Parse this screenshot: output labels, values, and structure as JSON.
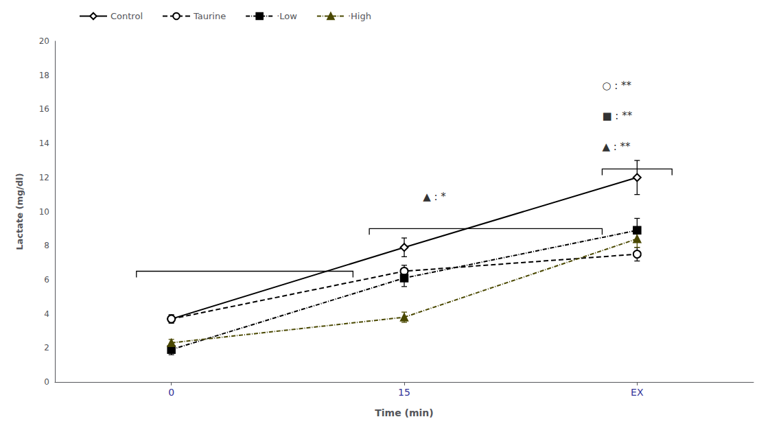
{
  "chart_data": {
    "type": "line",
    "xlabel": "Time (min)",
    "ylabel": "Lactate (mg/dl)",
    "categories": [
      "0",
      "15",
      "EX"
    ],
    "ylim": [
      0,
      20
    ],
    "yticks": [
      0,
      2,
      4,
      6,
      8,
      10,
      12,
      14,
      16,
      18,
      20
    ],
    "grid": false,
    "legend": "upper left",
    "series": [
      {
        "name": "Control",
        "color": "#000000",
        "marker": "diamond-open",
        "line_style": "solid",
        "values": [
          3.7,
          7.9,
          12.0
        ],
        "errors": [
          0.25,
          0.55,
          1.0
        ]
      },
      {
        "name": "Taurine",
        "color": "#000000",
        "marker": "circle-open",
        "line_style": "dashed",
        "values": [
          3.7,
          6.5,
          7.5
        ],
        "errors": [
          0.2,
          0.35,
          0.4
        ]
      },
      {
        "name": "·Low",
        "color": "#000000",
        "marker": "square",
        "line_style": "dashdot",
        "values": [
          1.9,
          6.1,
          8.9
        ],
        "errors": [
          0.3,
          0.5,
          0.7
        ]
      },
      {
        "name": "·High",
        "color": "#4a4800",
        "marker": "triangle",
        "line_style": "dashdot",
        "values": [
          2.3,
          3.8,
          8.4
        ],
        "errors": [
          0.2,
          0.3,
          0.5
        ]
      }
    ],
    "brackets": [
      {
        "x1": -0.15,
        "x2": 0.78,
        "y": 6.5
      },
      {
        "x1": 0.85,
        "x2": 1.85,
        "y": 9.0
      },
      {
        "x1": 1.85,
        "x2": 2.15,
        "y": 12.5
      }
    ],
    "annotations": [
      {
        "text": "▲ : *",
        "x": 1.08,
        "y": 10.85
      },
      {
        "text": "○ : **",
        "x": 1.85,
        "y": 17.4
      },
      {
        "text": "■ : **",
        "x": 1.85,
        "y": 15.6
      },
      {
        "text": "▲ : **",
        "x": 1.85,
        "y": 13.8
      }
    ]
  }
}
